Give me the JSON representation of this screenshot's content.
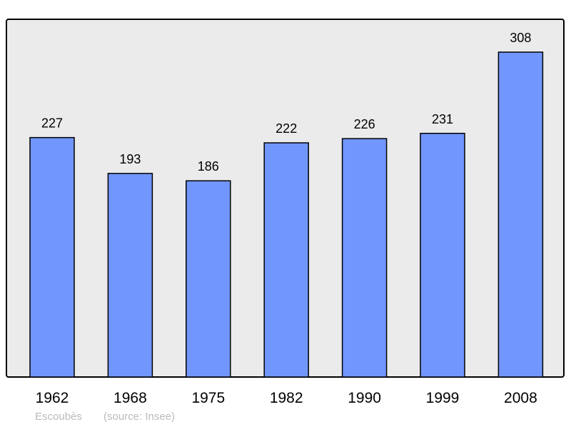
{
  "chart_data": {
    "type": "bar",
    "categories": [
      "1962",
      "1968",
      "1975",
      "1982",
      "1990",
      "1999",
      "2008"
    ],
    "values": [
      227,
      193,
      186,
      222,
      226,
      231,
      308
    ],
    "title": "",
    "xlabel": "",
    "ylabel": "",
    "ylim": [
      0,
      339
    ],
    "grid": false,
    "data_labels": true,
    "colors": {
      "bar": "#7197ff",
      "plot_bg": "#ebebeb",
      "frame": "#000000"
    }
  },
  "footer": {
    "place": "Escoubès",
    "source": "(source: Insee)"
  }
}
